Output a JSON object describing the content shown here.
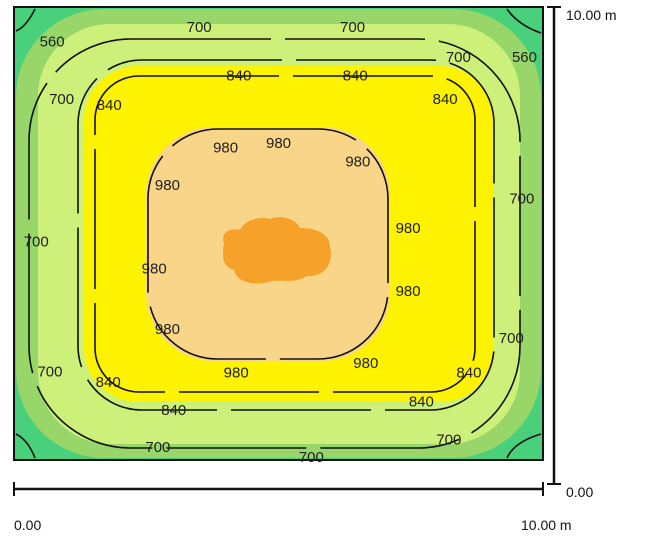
{
  "colors": {
    "zone_below_560": "#49d07a",
    "zone_560": "#98d66a",
    "zone_700": "#cdf07a",
    "zone_840": "#fdf200",
    "zone_980": "#f8d588",
    "zone_peak": "#f6a12a",
    "line": "#111111",
    "border": "#111111"
  },
  "axes": {
    "x_start_label": "0.00",
    "x_end_label": "10.00 m",
    "y_bottom_label": "0.00",
    "y_top_label": "10.00 m"
  },
  "contour_labels": [
    {
      "text": "700",
      "x_m": 3.5,
      "y_m": 9.54
    },
    {
      "text": "700",
      "x_m": 6.4,
      "y_m": 9.54
    },
    {
      "text": "560",
      "x_m": 0.72,
      "y_m": 9.22
    },
    {
      "text": "700",
      "x_m": 8.4,
      "y_m": 8.87
    },
    {
      "text": "560",
      "x_m": 9.65,
      "y_m": 8.87
    },
    {
      "text": "840",
      "x_m": 4.25,
      "y_m": 8.47
    },
    {
      "text": "840",
      "x_m": 6.45,
      "y_m": 8.47
    },
    {
      "text": "700",
      "x_m": 0.9,
      "y_m": 7.95
    },
    {
      "text": "840",
      "x_m": 1.8,
      "y_m": 7.81
    },
    {
      "text": "840",
      "x_m": 8.15,
      "y_m": 7.95
    },
    {
      "text": "980",
      "x_m": 4.0,
      "y_m": 6.88
    },
    {
      "text": "980",
      "x_m": 5.0,
      "y_m": 6.98
    },
    {
      "text": "980",
      "x_m": 6.5,
      "y_m": 6.57
    },
    {
      "text": "980",
      "x_m": 2.9,
      "y_m": 6.05
    },
    {
      "text": "700",
      "x_m": 9.6,
      "y_m": 5.75
    },
    {
      "text": "980",
      "x_m": 7.45,
      "y_m": 5.1
    },
    {
      "text": "700",
      "x_m": 0.42,
      "y_m": 4.8
    },
    {
      "text": "980",
      "x_m": 2.65,
      "y_m": 4.2
    },
    {
      "text": "980",
      "x_m": 7.45,
      "y_m": 3.71
    },
    {
      "text": "980",
      "x_m": 2.9,
      "y_m": 2.87
    },
    {
      "text": "700",
      "x_m": 9.4,
      "y_m": 2.67
    },
    {
      "text": "980",
      "x_m": 6.65,
      "y_m": 2.12
    },
    {
      "text": "980",
      "x_m": 4.2,
      "y_m": 1.91
    },
    {
      "text": "700",
      "x_m": 0.68,
      "y_m": 1.93
    },
    {
      "text": "840",
      "x_m": 1.78,
      "y_m": 1.7
    },
    {
      "text": "840",
      "x_m": 8.6,
      "y_m": 1.91
    },
    {
      "text": "840",
      "x_m": 3.02,
      "y_m": 1.08
    },
    {
      "text": "840",
      "x_m": 7.7,
      "y_m": 1.27
    },
    {
      "text": "700",
      "x_m": 2.72,
      "y_m": 0.26
    },
    {
      "text": "700",
      "x_m": 5.62,
      "y_m": 0.04
    },
    {
      "text": "700",
      "x_m": 8.22,
      "y_m": 0.43
    }
  ]
}
